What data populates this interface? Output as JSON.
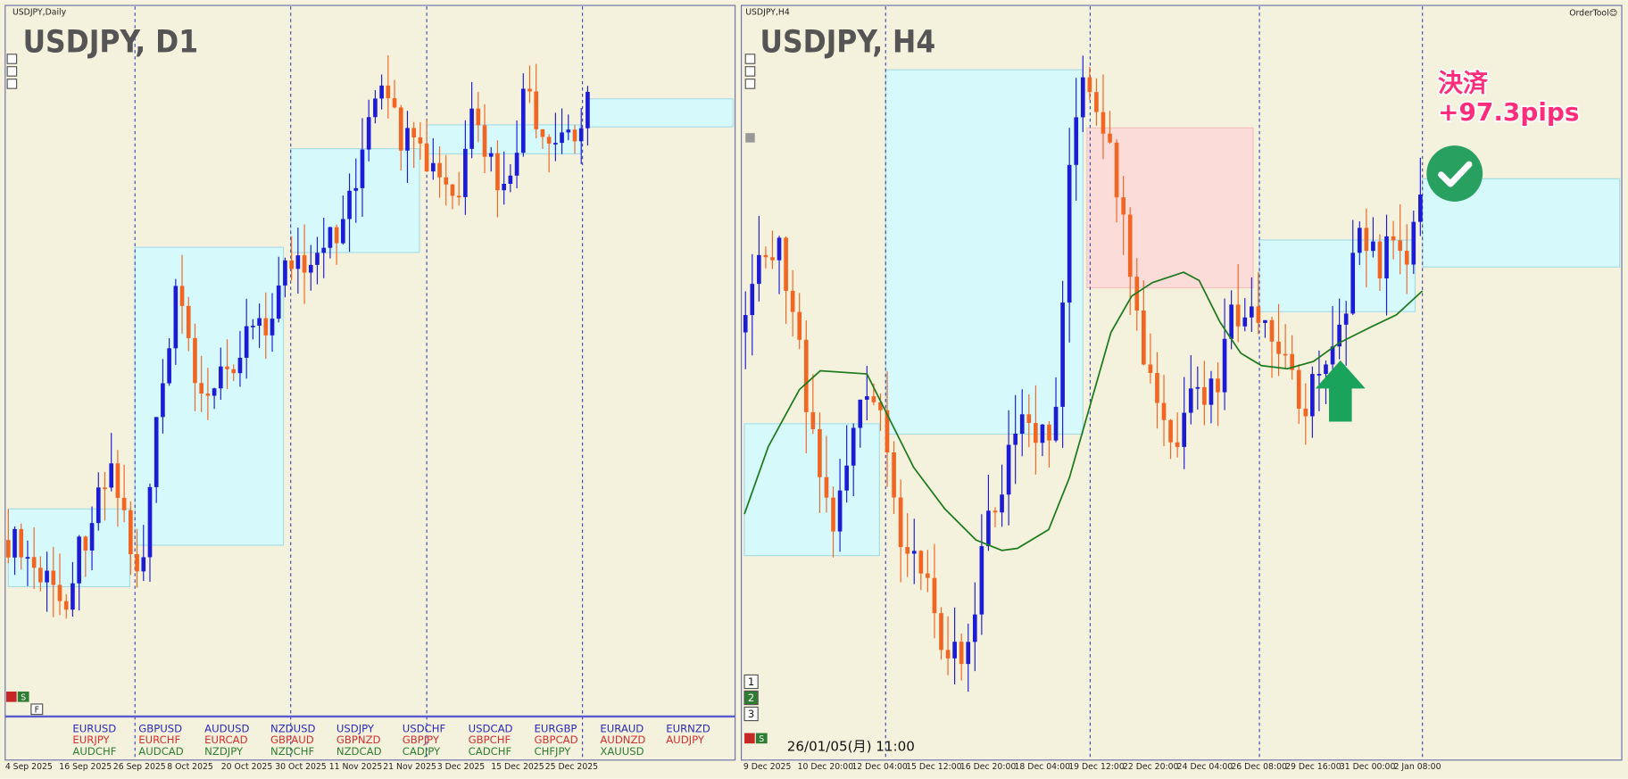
{
  "left_chart": {
    "symbol_label": "USDJPY,Daily",
    "title": "USDJPY, D1",
    "buttons": [
      "S",
      "F"
    ],
    "pairs": [
      [
        "EURUSD",
        "EURJPY",
        "AUDCHF"
      ],
      [
        "GBPUSD",
        "EURCHF",
        "AUDCAD"
      ],
      [
        "AUDUSD",
        "EURCAD",
        "NZDJPY"
      ],
      [
        "NZDUSD",
        "GBPAUD",
        "NZDCHF"
      ],
      [
        "USDJPY",
        "GBPNZD",
        "NZDCAD"
      ],
      [
        "USDCHF",
        "GBPJPY",
        "CADJPY"
      ],
      [
        "USDCAD",
        "GBPCHF",
        "CADCHF"
      ],
      [
        "EURGBP",
        "GBPCAD",
        "CHFJPY"
      ],
      [
        "EURAUD",
        "AUDNZD",
        "XAUUSD"
      ],
      [
        "EURNZD",
        "AUDJPY"
      ]
    ],
    "x_labels": [
      "4 Sep 2025",
      "16 Sep 2025",
      "26 Sep 2025",
      "8 Oct 2025",
      "20 Oct 2025",
      "30 Oct 2025",
      "11 Nov 2025",
      "21 Nov 2025",
      "3 Dec 2025",
      "15 Dec 2025",
      "25 Dec 2025"
    ]
  },
  "right_chart": {
    "symbol_label": "USDJPY,H4",
    "title": "USDJPY, H4",
    "tool_label": "OrderTool😊",
    "annotation_line1": "決済",
    "annotation_line2": "+97.3pips",
    "tabs": [
      "1",
      "2",
      "3"
    ],
    "button": "S",
    "timestamp": "26/01/05(月) 11:00",
    "x_labels": [
      "9 Dec 2025",
      "10 Dec 20:00",
      "12 Dec 04:00",
      "15 Dec 12:00",
      "16 Dec 20:00",
      "18 Dec 04:00",
      "19 Dec 12:00",
      "22 Dec 20:00",
      "24 Dec 04:00",
      "26 Dec 08:00",
      "29 Dec 16:00",
      "31 Dec 00:00",
      "2 Jan 08:00"
    ]
  }
}
